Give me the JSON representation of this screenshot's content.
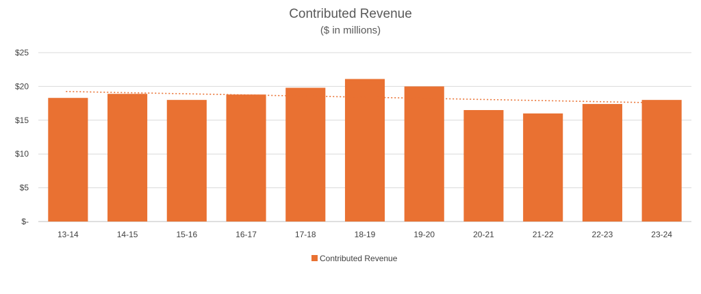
{
  "chart_data": {
    "type": "bar",
    "title": "Contributed Revenue",
    "subtitle": "($ in millions)",
    "categories": [
      "13-14",
      "14-15",
      "15-16",
      "16-17",
      "17-18",
      "18-19",
      "19-20",
      "20-21",
      "21-22",
      "22-23",
      "23-24"
    ],
    "series": [
      {
        "name": "Contributed Revenue",
        "values": [
          18.3,
          18.9,
          18.0,
          18.8,
          19.8,
          21.1,
          20.0,
          16.5,
          16.0,
          17.4,
          18.0
        ],
        "color": "#E97132"
      }
    ],
    "trendline": {
      "type": "linear",
      "style": "dotted",
      "color": "#E97132"
    },
    "y_ticks": [
      "$-",
      "$5",
      "$10",
      "$15",
      "$20",
      "$25"
    ],
    "ylim": [
      0,
      25
    ],
    "grid": true,
    "legend_position": "bottom"
  }
}
